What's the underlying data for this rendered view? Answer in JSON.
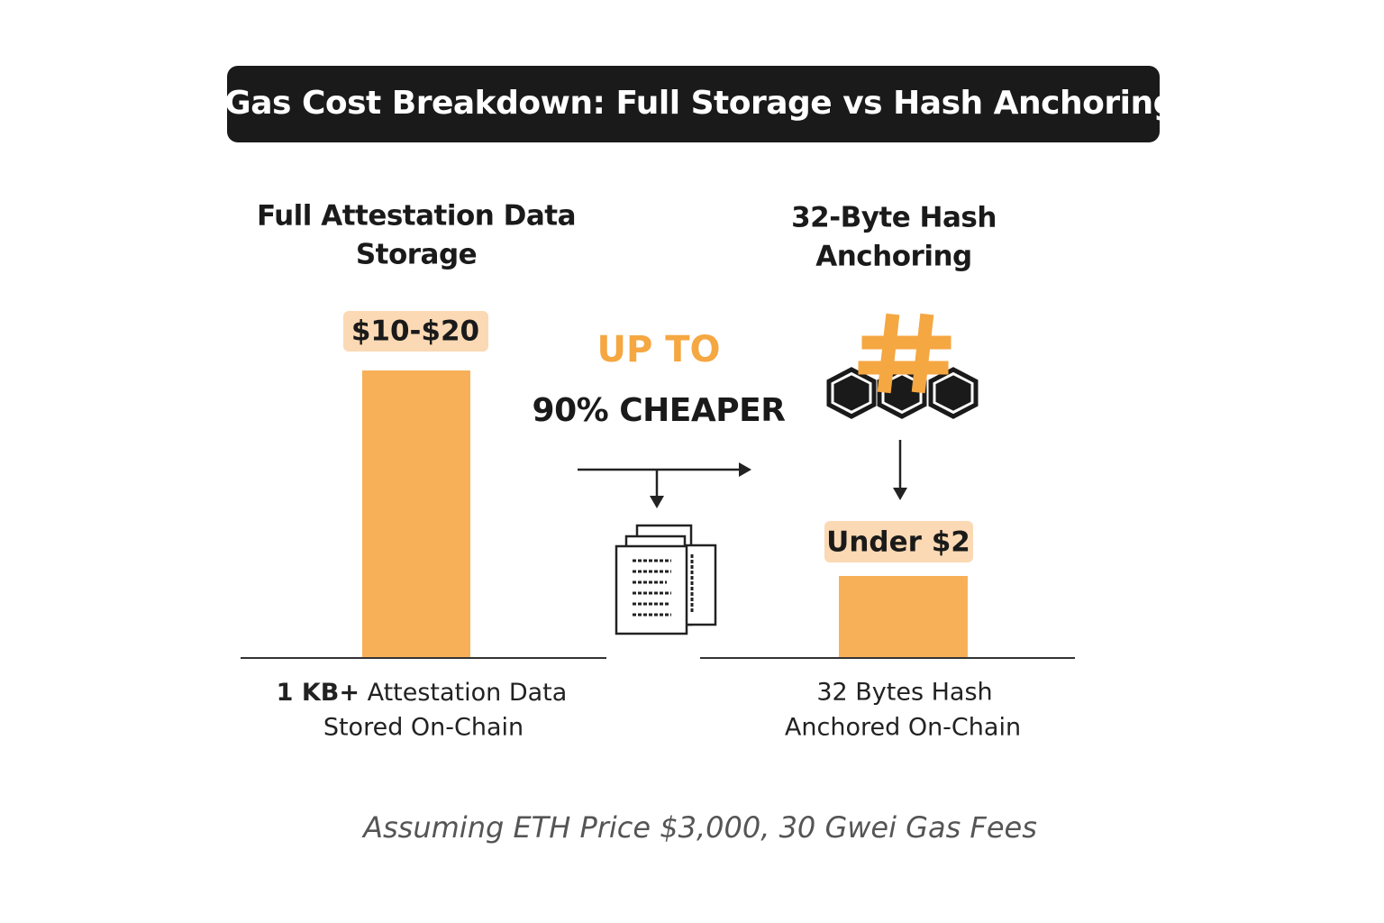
{
  "header": {
    "title": "Gas Cost Breakdown: Full Storage vs Hash Anchoring"
  },
  "left": {
    "heading": [
      "Full Attestation Data",
      "Storage"
    ],
    "cost": "$10-$20",
    "caption": {
      "bold": "1 KB+",
      "rest": " Attestation Data",
      "line2": "Stored On-Chain"
    }
  },
  "center": {
    "line1": "UP TO",
    "line2": "90% CHEAPER"
  },
  "right": {
    "heading": [
      "32-Byte Hash",
      "Anchoring"
    ],
    "cost": "Under $2",
    "caption": [
      "32 Bytes Hash",
      "Anchored On-Chain"
    ]
  },
  "footnote": "Assuming ETH Price $3,000, 30 Gwei Gas Fees"
}
